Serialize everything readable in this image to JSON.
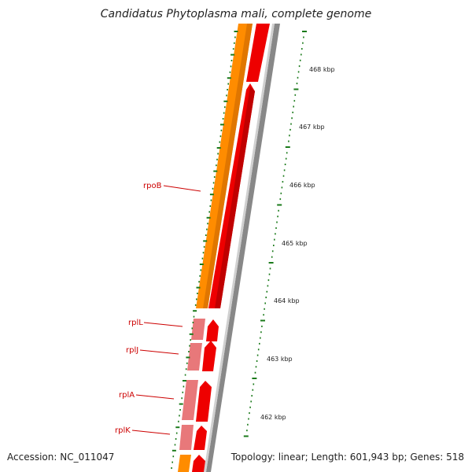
{
  "title": "Candidatus Phytoplasma mali, complete genome",
  "footer": {
    "accession": "Accession: NC_011047",
    "topology": "Topology: linear; Length: 601,943 bp; Genes: 518"
  },
  "colors": {
    "backbone": "#8a8a8a",
    "cds": "#ee0000",
    "operon_orange": "#ff8c00",
    "operon_pink": "#e8787a",
    "tick": "#1a7a1a",
    "gene_label": "#cc0000"
  },
  "genes": [
    "rpoB",
    "rplL",
    "rplJ",
    "rplA",
    "rplK"
  ],
  "scale_labels": [
    "468 kbp",
    "467 kbp",
    "466 kbp",
    "465 kbp",
    "464 kbp",
    "463 kbp",
    "462 kbp"
  ]
}
